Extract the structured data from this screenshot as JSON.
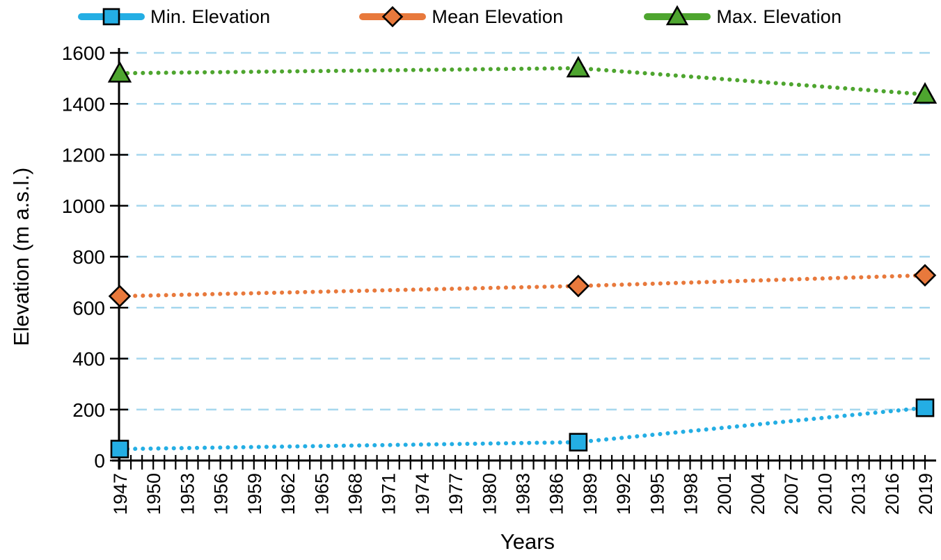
{
  "chart_data": {
    "type": "line",
    "title": "",
    "xlabel": "Years",
    "ylabel": "Elevation (m a.s.l.)",
    "x": [
      1947,
      1988,
      2019
    ],
    "series": [
      {
        "name": "Min. Elevation",
        "marker": "square",
        "color": "#24AEE4",
        "values": [
          45,
          72,
          207
        ]
      },
      {
        "name": "Mean Elevation",
        "marker": "diamond",
        "color": "#E8793C",
        "values": [
          645,
          685,
          727
        ]
      },
      {
        "name": "Max. Elevation",
        "marker": "triangle",
        "color": "#4EA52F",
        "values": [
          1520,
          1540,
          1437
        ]
      }
    ],
    "line_style": "dotted",
    "marker_outline": "#000000",
    "xlim": [
      1947,
      2019
    ],
    "ylim": [
      0,
      1600
    ],
    "y_ticks": [
      0,
      200,
      400,
      600,
      800,
      1000,
      1200,
      1400,
      1600
    ],
    "x_tick_labels": [
      1947,
      1950,
      1953,
      1956,
      1959,
      1962,
      1965,
      1968,
      1971,
      1974,
      1977,
      1980,
      1983,
      1986,
      1989,
      1992,
      1995,
      1998,
      2001,
      2004,
      2007,
      2010,
      2013,
      2016,
      2019
    ],
    "x_minor_ticks_every": 1,
    "grid": {
      "horizontal": true,
      "style": "dashed",
      "color": "#A6D7EE"
    },
    "legend_position": "top",
    "axis_color": "#000000",
    "text_color": "#000000",
    "background": "#FFFFFF"
  }
}
